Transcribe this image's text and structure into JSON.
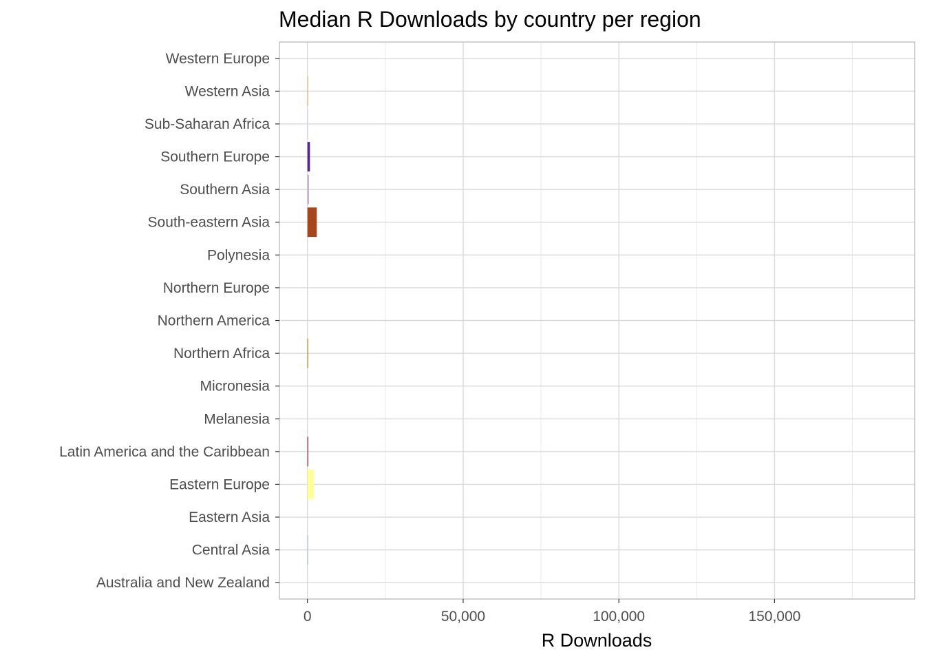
{
  "chart_data": {
    "type": "bar",
    "orientation": "horizontal",
    "title": "Median R Downloads by country per region",
    "xlabel": "R Downloads",
    "ylabel": "",
    "xlim": [
      -9000,
      195000
    ],
    "x_ticks": [
      0,
      50000,
      100000,
      150000
    ],
    "x_tick_labels": [
      "0",
      "50,000",
      "100,000",
      "150,000"
    ],
    "grid": true,
    "legend": "none",
    "categories": [
      "Australia and New Zealand",
      "Central Asia",
      "Eastern Asia",
      "Eastern Europe",
      "Latin America and the Caribbean",
      "Melanesia",
      "Micronesia",
      "Northern Africa",
      "Northern America",
      "Northern Europe",
      "Polynesia",
      "South-eastern Asia",
      "Southern Asia",
      "Southern Europe",
      "Sub-Saharan Africa",
      "Western Asia",
      "Western Europe"
    ],
    "values": [
      0,
      60,
      0,
      2100,
      220,
      0,
      0,
      180,
      0,
      0,
      0,
      3000,
      460,
      800,
      60,
      220,
      0
    ],
    "colors": [
      "#8dd3c7",
      "#b3cfd0",
      "#c7eae5",
      "#ffff99",
      "#b2182b",
      "#dddddd",
      "#dddddd",
      "#e08214",
      "#dddddd",
      "#dddddd",
      "#dddddd",
      "#a6461f",
      "#c2a5cf",
      "#542788",
      "#f1d4e6",
      "#fdb863",
      "#dddddd"
    ]
  }
}
